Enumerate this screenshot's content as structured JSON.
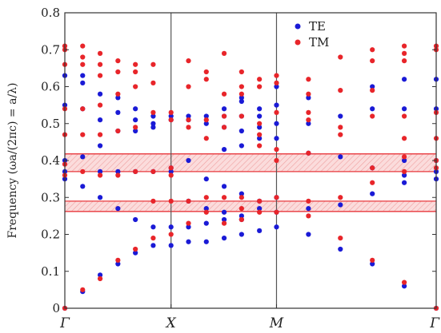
{
  "chart_data": {
    "type": "scatter",
    "title": "",
    "ylabel": "Frequency (ωa/(2πc) = a/λ)",
    "xlabel": "",
    "xlim": [
      0,
      1
    ],
    "ylim": [
      0,
      0.8
    ],
    "y_ticks": [
      "0",
      "0.1",
      "0.2",
      "0.3",
      "0.4",
      "0.5",
      "0.6",
      "0.7",
      "0.8"
    ],
    "symmetry_points": [
      {
        "label": "Γ",
        "x": 0
      },
      {
        "label": "X",
        "x": 0.286
      },
      {
        "label": "M",
        "x": 0.57
      },
      {
        "label": "Γ",
        "x": 1
      }
    ],
    "band_gaps": [
      {
        "ymin": 0.37,
        "ymax": 0.418,
        "color": "#e8383d"
      },
      {
        "ymin": 0.262,
        "ymax": 0.29,
        "color": "#e8383d"
      }
    ],
    "legend": {
      "position": "top-right"
    },
    "series": [
      {
        "name": "TE",
        "color": "#1a1ad6",
        "points": [
          [
            0.0,
            0.0
          ],
          [
            0.0,
            0.35
          ],
          [
            0.0,
            0.37
          ],
          [
            0.0,
            0.4
          ],
          [
            0.0,
            0.55
          ],
          [
            0.0,
            0.63
          ],
          [
            0.048,
            0.045
          ],
          [
            0.048,
            0.33
          ],
          [
            0.048,
            0.41
          ],
          [
            0.048,
            0.54
          ],
          [
            0.048,
            0.61
          ],
          [
            0.048,
            0.63
          ],
          [
            0.095,
            0.09
          ],
          [
            0.095,
            0.3
          ],
          [
            0.095,
            0.37
          ],
          [
            0.095,
            0.44
          ],
          [
            0.095,
            0.51
          ],
          [
            0.095,
            0.58
          ],
          [
            0.143,
            0.12
          ],
          [
            0.143,
            0.27
          ],
          [
            0.143,
            0.37
          ],
          [
            0.143,
            0.48
          ],
          [
            0.143,
            0.53
          ],
          [
            0.143,
            0.57
          ],
          [
            0.19,
            0.15
          ],
          [
            0.19,
            0.24
          ],
          [
            0.19,
            0.37
          ],
          [
            0.19,
            0.48
          ],
          [
            0.19,
            0.51
          ],
          [
            0.19,
            0.54
          ],
          [
            0.238,
            0.17
          ],
          [
            0.238,
            0.22
          ],
          [
            0.238,
            0.37
          ],
          [
            0.238,
            0.49
          ],
          [
            0.238,
            0.5
          ],
          [
            0.238,
            0.52
          ],
          [
            0.286,
            0.17
          ],
          [
            0.286,
            0.22
          ],
          [
            0.286,
            0.37
          ],
          [
            0.286,
            0.38
          ],
          [
            0.286,
            0.51
          ],
          [
            0.286,
            0.52
          ],
          [
            0.333,
            0.18
          ],
          [
            0.333,
            0.22
          ],
          [
            0.333,
            0.29
          ],
          [
            0.333,
            0.4
          ],
          [
            0.333,
            0.51
          ],
          [
            0.333,
            0.52
          ],
          [
            0.381,
            0.18
          ],
          [
            0.381,
            0.23
          ],
          [
            0.381,
            0.27
          ],
          [
            0.381,
            0.35
          ],
          [
            0.381,
            0.5
          ],
          [
            0.381,
            0.52
          ],
          [
            0.429,
            0.19
          ],
          [
            0.429,
            0.24
          ],
          [
            0.429,
            0.26
          ],
          [
            0.429,
            0.33
          ],
          [
            0.429,
            0.43
          ],
          [
            0.429,
            0.49
          ],
          [
            0.429,
            0.52
          ],
          [
            0.429,
            0.54
          ],
          [
            0.476,
            0.2
          ],
          [
            0.476,
            0.24
          ],
          [
            0.476,
            0.25
          ],
          [
            0.476,
            0.31
          ],
          [
            0.476,
            0.44
          ],
          [
            0.476,
            0.48
          ],
          [
            0.476,
            0.52
          ],
          [
            0.476,
            0.56
          ],
          [
            0.476,
            0.57
          ],
          [
            0.524,
            0.21
          ],
          [
            0.524,
            0.27
          ],
          [
            0.524,
            0.29
          ],
          [
            0.524,
            0.46
          ],
          [
            0.524,
            0.49
          ],
          [
            0.524,
            0.52
          ],
          [
            0.524,
            0.54
          ],
          [
            0.57,
            0.22
          ],
          [
            0.57,
            0.26
          ],
          [
            0.57,
            0.3
          ],
          [
            0.57,
            0.46
          ],
          [
            0.57,
            0.5
          ],
          [
            0.57,
            0.55
          ],
          [
            0.57,
            0.6
          ],
          [
            0.656,
            0.2
          ],
          [
            0.656,
            0.27
          ],
          [
            0.656,
            0.42
          ],
          [
            0.656,
            0.5
          ],
          [
            0.656,
            0.57
          ],
          [
            0.742,
            0.16
          ],
          [
            0.742,
            0.28
          ],
          [
            0.742,
            0.41
          ],
          [
            0.742,
            0.52
          ],
          [
            0.828,
            0.12
          ],
          [
            0.828,
            0.31
          ],
          [
            0.828,
            0.38
          ],
          [
            0.828,
            0.54
          ],
          [
            0.828,
            0.6
          ],
          [
            0.914,
            0.06
          ],
          [
            0.914,
            0.34
          ],
          [
            0.914,
            0.36
          ],
          [
            0.914,
            0.4
          ],
          [
            0.914,
            0.54
          ],
          [
            0.914,
            0.62
          ],
          [
            1.0,
            0.0
          ],
          [
            1.0,
            0.35
          ],
          [
            1.0,
            0.37
          ],
          [
            1.0,
            0.4
          ],
          [
            1.0,
            0.54
          ],
          [
            1.0,
            0.62
          ]
        ]
      },
      {
        "name": "TM",
        "color": "#e8252a",
        "points": [
          [
            0.0,
            0.0
          ],
          [
            0.0,
            0.36
          ],
          [
            0.0,
            0.39
          ],
          [
            0.0,
            0.47
          ],
          [
            0.0,
            0.54
          ],
          [
            0.0,
            0.66
          ],
          [
            0.0,
            0.7
          ],
          [
            0.0,
            0.71
          ],
          [
            0.048,
            0.05
          ],
          [
            0.048,
            0.37
          ],
          [
            0.048,
            0.47
          ],
          [
            0.048,
            0.54
          ],
          [
            0.048,
            0.66
          ],
          [
            0.048,
            0.68
          ],
          [
            0.048,
            0.71
          ],
          [
            0.095,
            0.08
          ],
          [
            0.095,
            0.36
          ],
          [
            0.095,
            0.47
          ],
          [
            0.095,
            0.55
          ],
          [
            0.095,
            0.63
          ],
          [
            0.095,
            0.66
          ],
          [
            0.095,
            0.69
          ],
          [
            0.143,
            0.13
          ],
          [
            0.143,
            0.36
          ],
          [
            0.143,
            0.48
          ],
          [
            0.143,
            0.58
          ],
          [
            0.143,
            0.64
          ],
          [
            0.143,
            0.67
          ],
          [
            0.19,
            0.16
          ],
          [
            0.19,
            0.37
          ],
          [
            0.19,
            0.49
          ],
          [
            0.19,
            0.6
          ],
          [
            0.19,
            0.64
          ],
          [
            0.19,
            0.66
          ],
          [
            0.238,
            0.19
          ],
          [
            0.238,
            0.29
          ],
          [
            0.238,
            0.37
          ],
          [
            0.238,
            0.53
          ],
          [
            0.238,
            0.61
          ],
          [
            0.238,
            0.66
          ],
          [
            0.286,
            0.2
          ],
          [
            0.286,
            0.29
          ],
          [
            0.286,
            0.36
          ],
          [
            0.286,
            0.38
          ],
          [
            0.286,
            0.51
          ],
          [
            0.286,
            0.53
          ],
          [
            0.333,
            0.23
          ],
          [
            0.333,
            0.29
          ],
          [
            0.333,
            0.49
          ],
          [
            0.333,
            0.51
          ],
          [
            0.333,
            0.6
          ],
          [
            0.333,
            0.67
          ],
          [
            0.381,
            0.26
          ],
          [
            0.381,
            0.3
          ],
          [
            0.381,
            0.46
          ],
          [
            0.381,
            0.51
          ],
          [
            0.381,
            0.62
          ],
          [
            0.381,
            0.64
          ],
          [
            0.429,
            0.23
          ],
          [
            0.429,
            0.3
          ],
          [
            0.429,
            0.49
          ],
          [
            0.429,
            0.52
          ],
          [
            0.429,
            0.58
          ],
          [
            0.429,
            0.69
          ],
          [
            0.476,
            0.24
          ],
          [
            0.476,
            0.27
          ],
          [
            0.476,
            0.3
          ],
          [
            0.476,
            0.52
          ],
          [
            0.476,
            0.58
          ],
          [
            0.476,
            0.6
          ],
          [
            0.476,
            0.64
          ],
          [
            0.524,
            0.26
          ],
          [
            0.524,
            0.29
          ],
          [
            0.524,
            0.44
          ],
          [
            0.524,
            0.47
          ],
          [
            0.524,
            0.5
          ],
          [
            0.524,
            0.6
          ],
          [
            0.524,
            0.62
          ],
          [
            0.57,
            0.26
          ],
          [
            0.57,
            0.3
          ],
          [
            0.57,
            0.4
          ],
          [
            0.57,
            0.43
          ],
          [
            0.57,
            0.53
          ],
          [
            0.57,
            0.61
          ],
          [
            0.57,
            0.63
          ],
          [
            0.656,
            0.25
          ],
          [
            0.656,
            0.29
          ],
          [
            0.656,
            0.42
          ],
          [
            0.656,
            0.51
          ],
          [
            0.656,
            0.53
          ],
          [
            0.656,
            0.58
          ],
          [
            0.656,
            0.62
          ],
          [
            0.742,
            0.19
          ],
          [
            0.742,
            0.3
          ],
          [
            0.742,
            0.47
          ],
          [
            0.742,
            0.49
          ],
          [
            0.742,
            0.59
          ],
          [
            0.742,
            0.68
          ],
          [
            0.828,
            0.13
          ],
          [
            0.828,
            0.34
          ],
          [
            0.828,
            0.38
          ],
          [
            0.828,
            0.52
          ],
          [
            0.828,
            0.59
          ],
          [
            0.828,
            0.67
          ],
          [
            0.828,
            0.7
          ],
          [
            0.914,
            0.07
          ],
          [
            0.914,
            0.37
          ],
          [
            0.914,
            0.41
          ],
          [
            0.914,
            0.46
          ],
          [
            0.914,
            0.52
          ],
          [
            0.914,
            0.67
          ],
          [
            0.914,
            0.69
          ],
          [
            0.914,
            0.71
          ],
          [
            1.0,
            0.0
          ],
          [
            1.0,
            0.38
          ],
          [
            1.0,
            0.4
          ],
          [
            1.0,
            0.46
          ],
          [
            1.0,
            0.53
          ],
          [
            1.0,
            0.7
          ],
          [
            1.0,
            0.71
          ]
        ]
      }
    ]
  }
}
